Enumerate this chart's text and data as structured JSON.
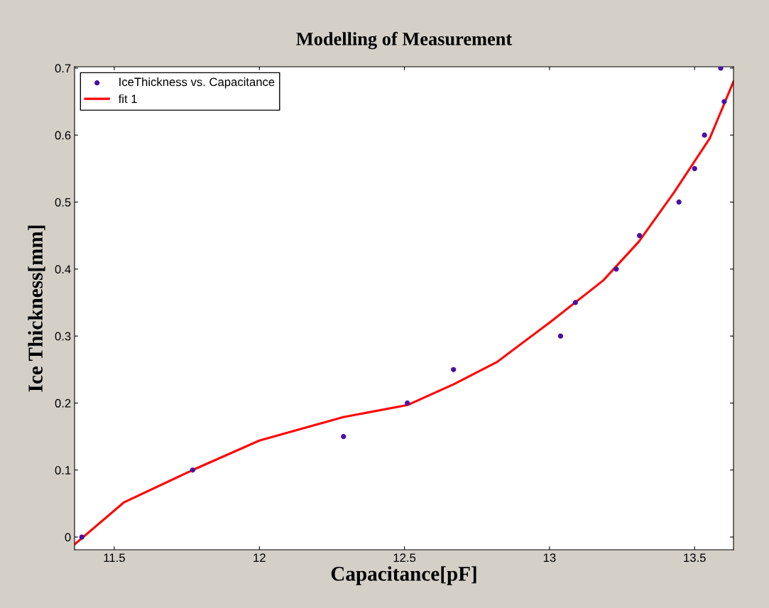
{
  "chart_data": {
    "type": "scatter",
    "title": "Modelling of Measurement",
    "xlabel": "Capacitance[pF]",
    "ylabel": "Ice Thickness[mm]",
    "xlim": [
      11.363,
      13.634
    ],
    "ylim": [
      -0.019,
      0.702
    ],
    "xticks": [
      11.5,
      12,
      12.5,
      13,
      13.5
    ],
    "yticks": [
      0,
      0.1,
      0.2,
      0.3,
      0.4,
      0.5,
      0.6,
      0.7
    ],
    "grid": false,
    "legend": "top left",
    "marker": "circle",
    "series": [
      {
        "name": "IceThickness vs. Capacitance",
        "color": "#4b0fa8",
        "x": [
          11.388,
          11.77,
          12.29,
          12.51,
          12.669,
          13.038,
          13.089,
          13.23,
          13.31,
          13.446,
          13.5,
          13.534,
          13.59,
          13.602
        ],
        "values": [
          0,
          0.1,
          0.15,
          0.2,
          0.25,
          0.3,
          0.35,
          0.4,
          0.45,
          0.5,
          0.55,
          0.6,
          0.7,
          0.65
        ]
      },
      {
        "name": "fit 1",
        "type": "line",
        "color": "#ff0000",
        "line_style": "solid",
        "marker": "none",
        "x": [
          11.363,
          11.534,
          11.77,
          12.0,
          12.289,
          12.51,
          12.669,
          12.818,
          13.0,
          13.185,
          13.308,
          13.43,
          13.552,
          13.634
        ],
        "values": [
          -0.011,
          0.052,
          0.1,
          0.144,
          0.179,
          0.197,
          0.228,
          0.261,
          0.32,
          0.383,
          0.441,
          0.515,
          0.595,
          0.68
        ]
      }
    ]
  }
}
